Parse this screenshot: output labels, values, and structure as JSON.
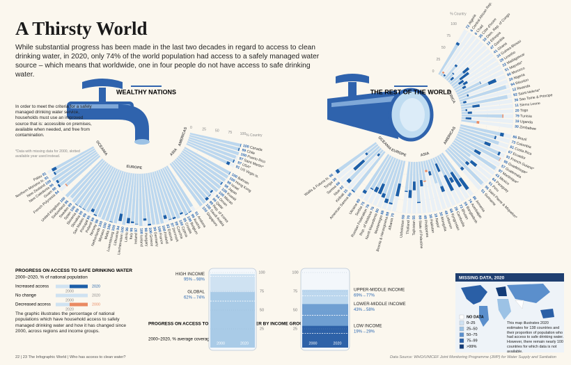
{
  "header": {
    "title": "A Thirsty World",
    "intro": "While substantial progress has been made in the last two decades in regard to access to clean drinking water, in 2020, only 74% of the world population had access to a safely managed water source – which means that worldwide, one in four people do not have access to safe drinking water."
  },
  "note": {
    "text": "In order to meet the criteria for a safely managed drinking water service, households must use an improved source that is: accessible on premises, available when needed, and free from contamination.",
    "footnote": "*Data with missing data for 2000, slotted available year used instead."
  },
  "legend": {
    "title": "PROGRESS ON ACCESS TO SAFE DRINKING WATER",
    "subtitle": "2000–2020, % of national population",
    "items": [
      {
        "label": "Increased access",
        "start": "2000",
        "end": "2020",
        "color": "#1d5fa8"
      },
      {
        "label": "No change",
        "start": "2000",
        "end": "2020",
        "color": "#cfe2f1"
      },
      {
        "label": "Decreased access",
        "start": "2020",
        "end": "2000",
        "color": "#e98a62"
      }
    ],
    "text": "The graphic illustrates the percentage of national populations which have household access to safely managed drinking water and how it has changed since 2000, across regions and income groups."
  },
  "chart_data": [
    {
      "type": "radial-bar",
      "title": "WEALTHY NATIONS",
      "axis_label": "% Country",
      "ylim": [
        0,
        100
      ],
      "yticks": [
        0,
        25,
        50,
        75,
        100
      ],
      "colors": {
        "track": "#e9f0f6",
        "bar": "#bcd7ee",
        "increase": "#1d5fa8",
        "decrease": "#e98a62",
        "value": "#2a67b1"
      },
      "groups": [
        {
          "name": "AMERICAS",
          "categories": [
            "Canada",
            "Chile",
            "Puerto Rico",
            "Saint Martin*",
            "USA*",
            "US Virgin Is."
          ],
          "values_2000": [
            99,
            97,
            100,
            97,
            95,
            85
          ],
          "values_2020": [
            100,
            99,
            100,
            97,
            97,
            91
          ]
        },
        {
          "name": "ASIA",
          "categories": [
            "Bahrain",
            "Hong Kong",
            "Israel",
            "Japan",
            "Kuwait",
            "Macao",
            "Oman",
            "Qatar",
            "Rep. of Korea",
            "Saudi Arabia",
            "Singapore"
          ],
          "values_2000": [
            99,
            100,
            99,
            96,
            100,
            100,
            91,
            95,
            94,
            100,
            100
          ],
          "values_2020": [
            100,
            100,
            99,
            98,
            100,
            100,
            94,
            96,
            99,
            100,
            100
          ]
        },
        {
          "name": "EUROPE",
          "categories": [
            "Andorra",
            "Austria",
            "Belgium",
            "Croatia",
            "Cyprus",
            "Czechia",
            "Denmark",
            "Estonia",
            "Finland",
            "France",
            "Germany",
            "Greece",
            "Hungary",
            "Iceland",
            "Ireland",
            "Italy",
            "Latvia",
            "Liechtenstein",
            "Lithuania",
            "Luxembourg",
            "Malta",
            "Monaco",
            "Netherlands",
            "Norway",
            "Poland",
            "Portugal",
            "San Marino",
            "Slovakia",
            "Slovenia",
            "Spain",
            "Sweden",
            "Switzerland",
            "United Kingdom"
          ],
          "values_2000": [
            91,
            98,
            99,
            92,
            100,
            95,
            96,
            86,
            100,
            100,
            99,
            97,
            86,
            100,
            96,
            92,
            86,
            100,
            80,
            100,
            99,
            100,
            100,
            98,
            97,
            89,
            99,
            98,
            98,
            99,
            99,
            95,
            100
          ],
          "values_2020": [
            91,
            99,
            100,
            95,
            100,
            98,
            97,
            93,
            100,
            100,
            99,
            100,
            90,
            100,
            97,
            95,
            96,
            100,
            94,
            100,
            100,
            100,
            100,
            98,
            99,
            95,
            99,
            99,
            99,
            100,
            99,
            95,
            100
          ]
        },
        {
          "name": "OCEANIA",
          "categories": [
            "French Polynesia",
            "Guam",
            "New Caledonia",
            "New Zealand",
            "Northern Mariana Is.",
            "Palau"
          ],
          "values_2000": [
            86,
            95,
            92,
            100,
            88,
            82
          ],
          "values_2020": [
            84,
            98,
            96,
            100,
            91,
            91
          ]
        }
      ]
    },
    {
      "type": "radial-bar",
      "title": "THE REST OF THE WORLD",
      "axis_label": "% Country",
      "ylim": [
        0,
        100
      ],
      "yticks": [
        0,
        25,
        50,
        75,
        100
      ],
      "colors": {
        "track": "#e9f0f6",
        "bar": "#bcd7ee",
        "increase": "#1d5fa8",
        "decrease": "#e98a62",
        "value": "#2a67b1"
      },
      "groups": [
        {
          "name": "AFRICA",
          "categories": [
            "Algeria",
            "Central African Rep.",
            "Chad",
            "Côte d'Ivoire",
            "Dem. Rep. of Congo",
            "Ethiopia",
            "Gambia",
            "Ghana",
            "Guinea-Bissau",
            "Lesotho",
            "Madagascar",
            "Mayotte*",
            "Morocco",
            "Nigeria",
            "Réunion",
            "Rwanda",
            "Saint Helena*",
            "Sao Tome & Principe",
            "Sierra Leone",
            "Togo",
            "Tunisia",
            "Uganda",
            "Zimbabwe"
          ],
          "values_2000": [
            67,
            9,
            3,
            31,
            17,
            6,
            33,
            20,
            13,
            20,
            15,
            50,
            64,
            17,
            94,
            6,
            92,
            22,
            8,
            12,
            81,
            8,
            35
          ],
          "values_2020": [
            72,
            6,
            6,
            35,
            19,
            13,
            47,
            41,
            24,
            29,
            22,
            51,
            80,
            20,
            94,
            12,
            92,
            36,
            11,
            20,
            79,
            19,
            30
          ]
        },
        {
          "name": "AMERICAS",
          "categories": [
            "Brazil",
            "Colombia",
            "Costa Rica",
            "Ecuador",
            "French Guiana*",
            "Guadeloupe*",
            "Guatemala",
            "Martinique*",
            "Mexico",
            "Paraguay",
            "Peru",
            "Saint Pierre & Miquelon*",
            "Suriname"
          ],
          "values_2000": [
            79,
            70,
            81,
            55,
            87,
            96,
            44,
            97,
            43,
            50,
            44,
            96,
            45
          ],
          "values_2020": [
            86,
            73,
            81,
            67,
            91,
            95,
            57,
            97,
            43,
            64,
            51,
            96,
            51
          ]
        },
        {
          "name": "ASIA",
          "categories": [
            "Armenia",
            "Azerbaijan",
            "Bangladesh",
            "Bhutan",
            "Cambodia",
            "Kyrgyzstan",
            "Lebanon",
            "Mongolia",
            "Nepal",
            "Pakistan",
            "Philippines",
            "State of Palestine",
            "Tajikistan",
            "Thailand",
            "Uzbekistan"
          ],
          "values_2000": [
            60,
            41,
            49,
            40,
            12,
            57,
            48,
            22,
            22,
            40,
            36,
            78,
            38,
            55,
            57
          ],
          "values_2020": [
            86,
            74,
            59,
            73,
            29,
            68,
            48,
            30,
            18,
            38,
            48,
            80,
            55,
            70,
            59
          ]
        },
        {
          "name": "EUROPE",
          "categories": [
            "Albania",
            "Bosnia & Herzegovina",
            "Montenegro",
            "North Macedonia",
            "Rep. of Moldova",
            "Russian Federation",
            "Serbia",
            "Ukraine"
          ],
          "values_2000": [
            45,
            85,
            80,
            72,
            55,
            66,
            73,
            83
          ],
          "values_2020": [
            70,
            88,
            88,
            80,
            76,
            76,
            75,
            89
          ]
        },
        {
          "name": "OCEANIA",
          "categories": [
            "American Samoa",
            "Kiribati",
            "Niue",
            "Samoa",
            "Tonga",
            "Wallis & Futuna Is."
          ],
          "values_2000": [
            97,
            10,
            85,
            40,
            26,
            90
          ],
          "values_2020": [
            99,
            15,
            92,
            66,
            30,
            96
          ]
        }
      ]
    },
    {
      "type": "glass",
      "title": "PROGRESS ON ACCESS TO SAFE DRINKING WATER BY INCOME GROUP",
      "subtitle": "2000–2020, % average coverage",
      "ylim": [
        0,
        100
      ],
      "yticks": [
        25,
        50,
        75,
        100
      ],
      "x_labels": [
        "2000",
        "2020"
      ],
      "series": [
        {
          "name": "HIGH INCOME",
          "values": [
            95,
            98
          ],
          "label": "95%→98%",
          "color": "#cfe2f2"
        },
        {
          "name": "GLOBAL",
          "values": [
            62,
            74
          ],
          "label": "62%→74%",
          "color": "#a9cbe7"
        }
      ]
    },
    {
      "type": "glass",
      "ylim": [
        0,
        100
      ],
      "yticks": [
        25,
        50,
        75,
        100
      ],
      "x_labels": [
        "2000",
        "2020"
      ],
      "series": [
        {
          "name": "UPPER-MIDDLE INCOME",
          "values": [
            69,
            77
          ],
          "label": "69%→77%",
          "color": "#bcd7ee"
        },
        {
          "name": "LOWER-MIDDLE INCOME",
          "values": [
            43,
            58
          ],
          "label": "43%→58%",
          "color": "#6f9fd2"
        },
        {
          "name": "LOW INCOME",
          "values": [
            19,
            29
          ],
          "label": "19%→29%",
          "color": "#2e62a8"
        }
      ]
    }
  ],
  "map": {
    "title": "MISSING DATA, 2020",
    "legend": [
      {
        "label": "NO DATA",
        "color": "#ffffff"
      },
      {
        "label": "0–25",
        "color": "#cfe2f2"
      },
      {
        "label": "25–50",
        "color": "#9cc2e5"
      },
      {
        "label": "50–75",
        "color": "#5b8fcc"
      },
      {
        "label": "75–99",
        "color": "#2a5fa6"
      },
      {
        "label": ">99%",
        "color": "#143c78"
      }
    ],
    "text": "This map illustrates 2020 estimates for 138 countries and their proportion of population who had access to safe drinking water. However, there remain nearly 100 countries for which data is not available."
  },
  "footer": {
    "folio": "22 | 23  The Infographic World  |  Who has access to clean water?",
    "source": "Data Source: WHO/UNICEF Joint Monitoring Programme (JMP) for Water Supply and Sanitation"
  }
}
